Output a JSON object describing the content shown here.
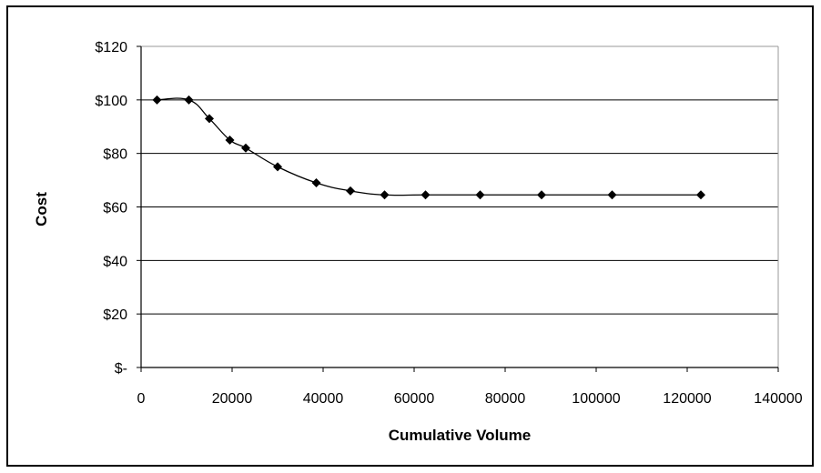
{
  "chart_data": {
    "type": "scatter",
    "title": "",
    "xlabel": "Cumulative Volume",
    "ylabel": "Cost",
    "xlim": [
      0,
      140000
    ],
    "ylim": [
      0,
      120
    ],
    "x_ticks": [
      0,
      20000,
      40000,
      60000,
      80000,
      100000,
      120000,
      140000
    ],
    "x_tick_labels": [
      "0",
      "20000",
      "40000",
      "60000",
      "80000",
      "100000",
      "120000",
      "140000"
    ],
    "y_ticks": [
      0,
      20,
      40,
      60,
      80,
      100,
      120
    ],
    "y_tick_labels": [
      "$-",
      "$20",
      "$40",
      "$60",
      "$80",
      "$100",
      "$120"
    ],
    "grid": true,
    "legend": "none",
    "series": [
      {
        "x": [
          3500,
          10500,
          15000,
          19500,
          23000,
          30000,
          38500,
          46000,
          53500,
          62500,
          74500,
          88000,
          103500,
          123000
        ],
        "y": [
          100,
          100,
          93,
          85,
          82,
          75,
          69,
          66,
          64.5,
          64.5,
          64.5,
          64.5,
          64.5,
          64.5
        ]
      }
    ],
    "marker": "diamond",
    "line": "smooth",
    "colors": {
      "series": "#000000",
      "grid": "#000000",
      "axis": "#000000"
    }
  }
}
